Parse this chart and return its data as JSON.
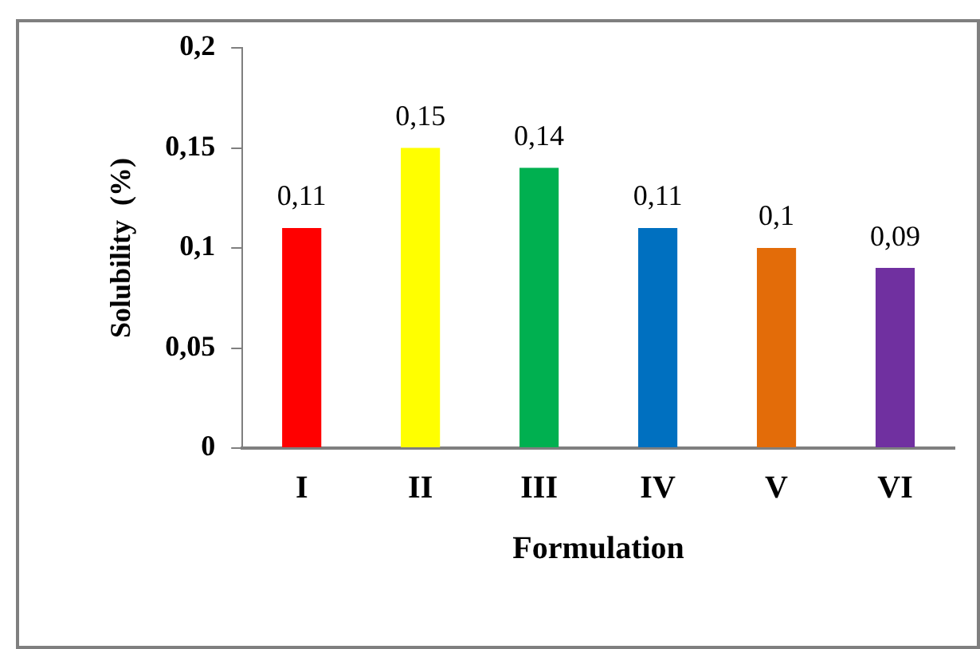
{
  "chart_data": {
    "type": "bar",
    "xlabel": "Formulation",
    "ylabel": "Solubility  (%)",
    "categories": [
      "I",
      "II",
      "III",
      "IV",
      "V",
      "VI"
    ],
    "values": [
      0.11,
      0.15,
      0.14,
      0.11,
      0.1,
      0.09
    ],
    "colors": [
      "#ff0000",
      "#ffff00",
      "#00b050",
      "#0070c0",
      "#e36c09",
      "#7030a0"
    ],
    "value_labels": [
      "0,11",
      "0,15",
      "0,14",
      "0,11",
      "0,1",
      "0,09"
    ],
    "ylim": [
      0,
      0.2
    ],
    "yticks": [
      {
        "value": 0,
        "label": "0"
      },
      {
        "value": 0.05,
        "label": "0,05"
      },
      {
        "value": 0.1,
        "label": "0,1"
      },
      {
        "value": 0.15,
        "label": "0,15"
      },
      {
        "value": 0.2,
        "label": "0,2"
      }
    ],
    "grid": false,
    "legend": false
  }
}
